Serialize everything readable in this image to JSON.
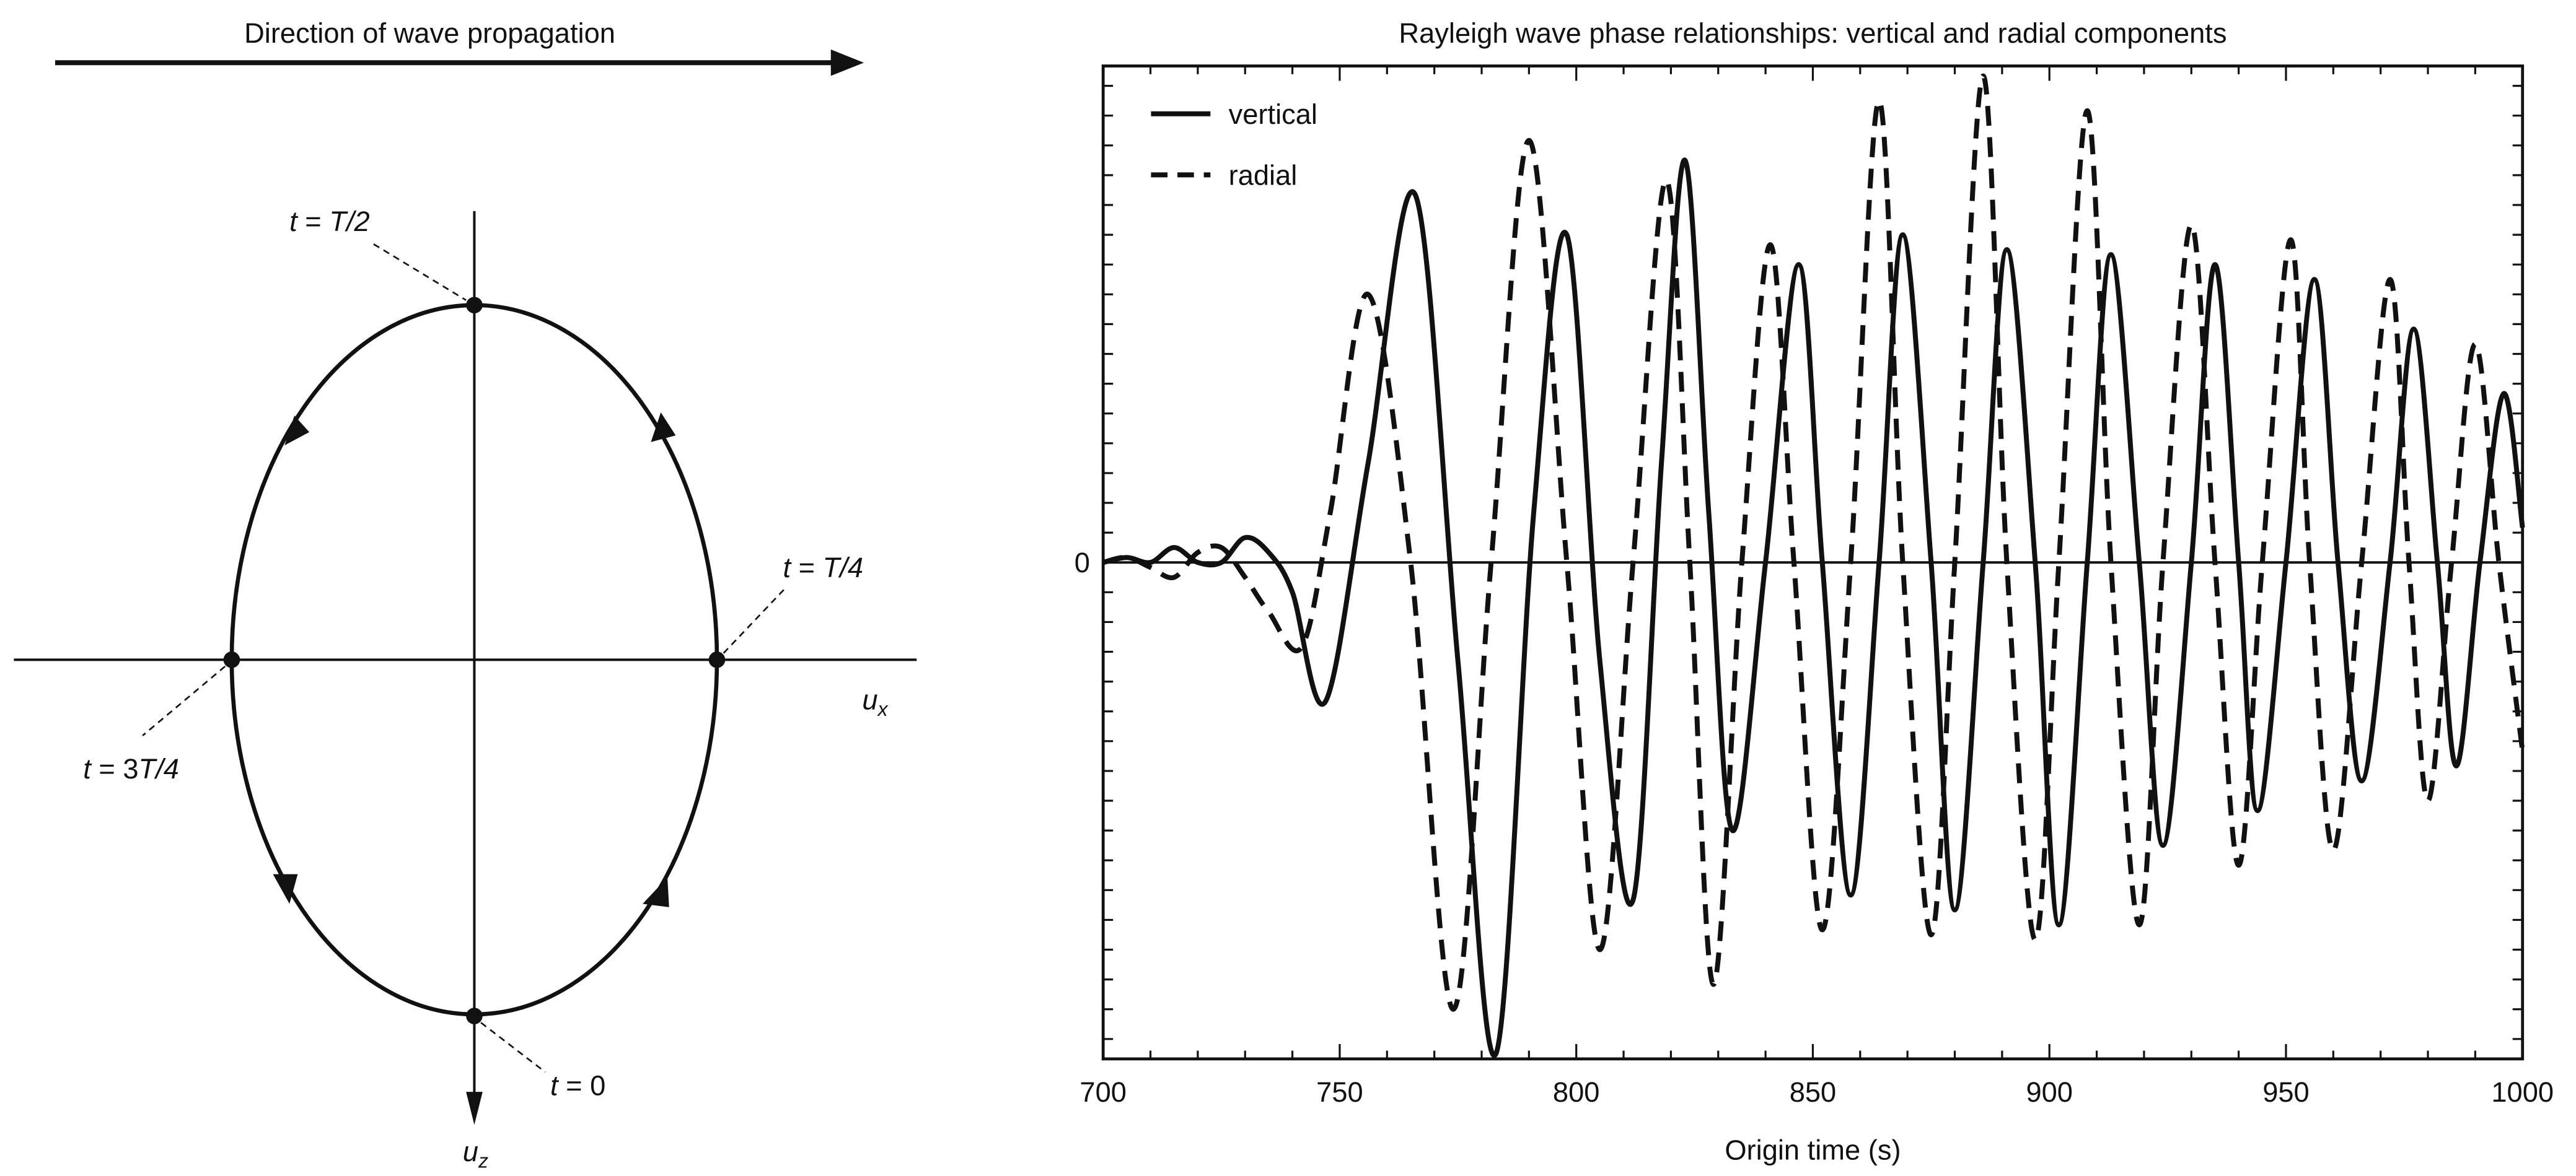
{
  "diagram": {
    "direction_label": "Direction of wave propagation",
    "axis_x_label": "u",
    "axis_x_sub": "x",
    "axis_z_label": "u",
    "axis_z_sub": "z",
    "points": [
      {
        "t_var": "t",
        "eq": " = ",
        "value": "T/2"
      },
      {
        "t_var": "t",
        "eq": " = ",
        "value": "T/4"
      },
      {
        "t_var": "t",
        "eq": " = ",
        "value": "0"
      },
      {
        "t_var": "t",
        "eq": " = 3",
        "value": "T/4"
      }
    ]
  },
  "chart_data": {
    "type": "line",
    "title": "Rayleigh wave phase relationships: vertical and radial components",
    "xlabel": "Origin time (s)",
    "ylabel": "",
    "xlim": [
      700,
      1000
    ],
    "ylim": [
      -1,
      1
    ],
    "x_ticks": [
      "700",
      "750",
      "800",
      "850",
      "900",
      "950",
      "1000"
    ],
    "x_tick_values": [
      700,
      750,
      800,
      850,
      900,
      950,
      1000
    ],
    "y_tick_label": "0",
    "legend_position": "top-left",
    "series": [
      {
        "name": "vertical",
        "style": "solid",
        "points": [
          [
            700,
            0
          ],
          [
            705,
            0.01
          ],
          [
            710,
            0.0
          ],
          [
            715,
            0.03
          ],
          [
            720,
            0.0
          ],
          [
            725,
            0.0
          ],
          [
            730,
            0.05
          ],
          [
            735,
            0.02
          ],
          [
            740,
            -0.06
          ],
          [
            747,
            -0.28
          ],
          [
            756,
            0.2
          ],
          [
            766,
            0.74
          ],
          [
            775,
            -0.2
          ],
          [
            783,
            -0.99
          ],
          [
            791,
            0.1
          ],
          [
            798,
            0.66
          ],
          [
            805,
            -0.2
          ],
          [
            812,
            -0.68
          ],
          [
            818,
            0.2
          ],
          [
            823,
            0.81
          ],
          [
            828,
            0.1
          ],
          [
            833,
            -0.54
          ],
          [
            840,
            0.0
          ],
          [
            847,
            0.6
          ],
          [
            852,
            0.0
          ],
          [
            858,
            -0.67
          ],
          [
            864,
            0.0
          ],
          [
            869,
            0.66
          ],
          [
            875,
            0.0
          ],
          [
            880,
            -0.7
          ],
          [
            886,
            0.0
          ],
          [
            891,
            0.63
          ],
          [
            897,
            0.0
          ],
          [
            902,
            -0.73
          ],
          [
            908,
            0.0
          ],
          [
            913,
            0.62
          ],
          [
            919,
            0.0
          ],
          [
            924,
            -0.57
          ],
          [
            930,
            0.0
          ],
          [
            935,
            0.6
          ],
          [
            940,
            0.0
          ],
          [
            944,
            -0.5
          ],
          [
            950,
            0.0
          ],
          [
            956,
            0.57
          ],
          [
            961,
            0.0
          ],
          [
            966,
            -0.44
          ],
          [
            972,
            0.0
          ],
          [
            977,
            0.47
          ],
          [
            982,
            0.0
          ],
          [
            986,
            -0.41
          ],
          [
            991,
            0.0
          ],
          [
            996,
            0.34
          ],
          [
            1000,
            0.07
          ]
        ]
      },
      {
        "name": "radial",
        "style": "dashed",
        "points": [
          [
            700,
            0.0
          ],
          [
            705,
            0.01
          ],
          [
            710,
            -0.01
          ],
          [
            715,
            -0.03
          ],
          [
            720,
            0.02
          ],
          [
            725,
            0.03
          ],
          [
            730,
            -0.03
          ],
          [
            735,
            -0.1
          ],
          [
            742,
            -0.17
          ],
          [
            748,
            0.1
          ],
          [
            756,
            0.54
          ],
          [
            765,
            0.0
          ],
          [
            774,
            -0.9
          ],
          [
            782,
            0.0
          ],
          [
            790,
            0.85
          ],
          [
            798,
            0.0
          ],
          [
            805,
            -0.78
          ],
          [
            812,
            0.0
          ],
          [
            819,
            0.77
          ],
          [
            824,
            0.0
          ],
          [
            829,
            -0.85
          ],
          [
            835,
            0.0
          ],
          [
            841,
            0.64
          ],
          [
            846,
            0.0
          ],
          [
            852,
            -0.74
          ],
          [
            858,
            0.0
          ],
          [
            864,
            0.93
          ],
          [
            869,
            0.0
          ],
          [
            875,
            -0.75
          ],
          [
            880,
            0.0
          ],
          [
            886,
            0.98
          ],
          [
            891,
            0.0
          ],
          [
            897,
            -0.76
          ],
          [
            902,
            0.0
          ],
          [
            908,
            0.91
          ],
          [
            913,
            0.0
          ],
          [
            919,
            -0.73
          ],
          [
            924,
            0.0
          ],
          [
            930,
            0.68
          ],
          [
            935,
            0.0
          ],
          [
            940,
            -0.61
          ],
          [
            945,
            0.0
          ],
          [
            951,
            0.65
          ],
          [
            955,
            0.0
          ],
          [
            960,
            -0.58
          ],
          [
            966,
            0.0
          ],
          [
            972,
            0.57
          ],
          [
            976,
            0.0
          ],
          [
            980,
            -0.48
          ],
          [
            985,
            0.0
          ],
          [
            990,
            0.44
          ],
          [
            995,
            0.0
          ],
          [
            1000,
            -0.38
          ]
        ]
      }
    ]
  }
}
